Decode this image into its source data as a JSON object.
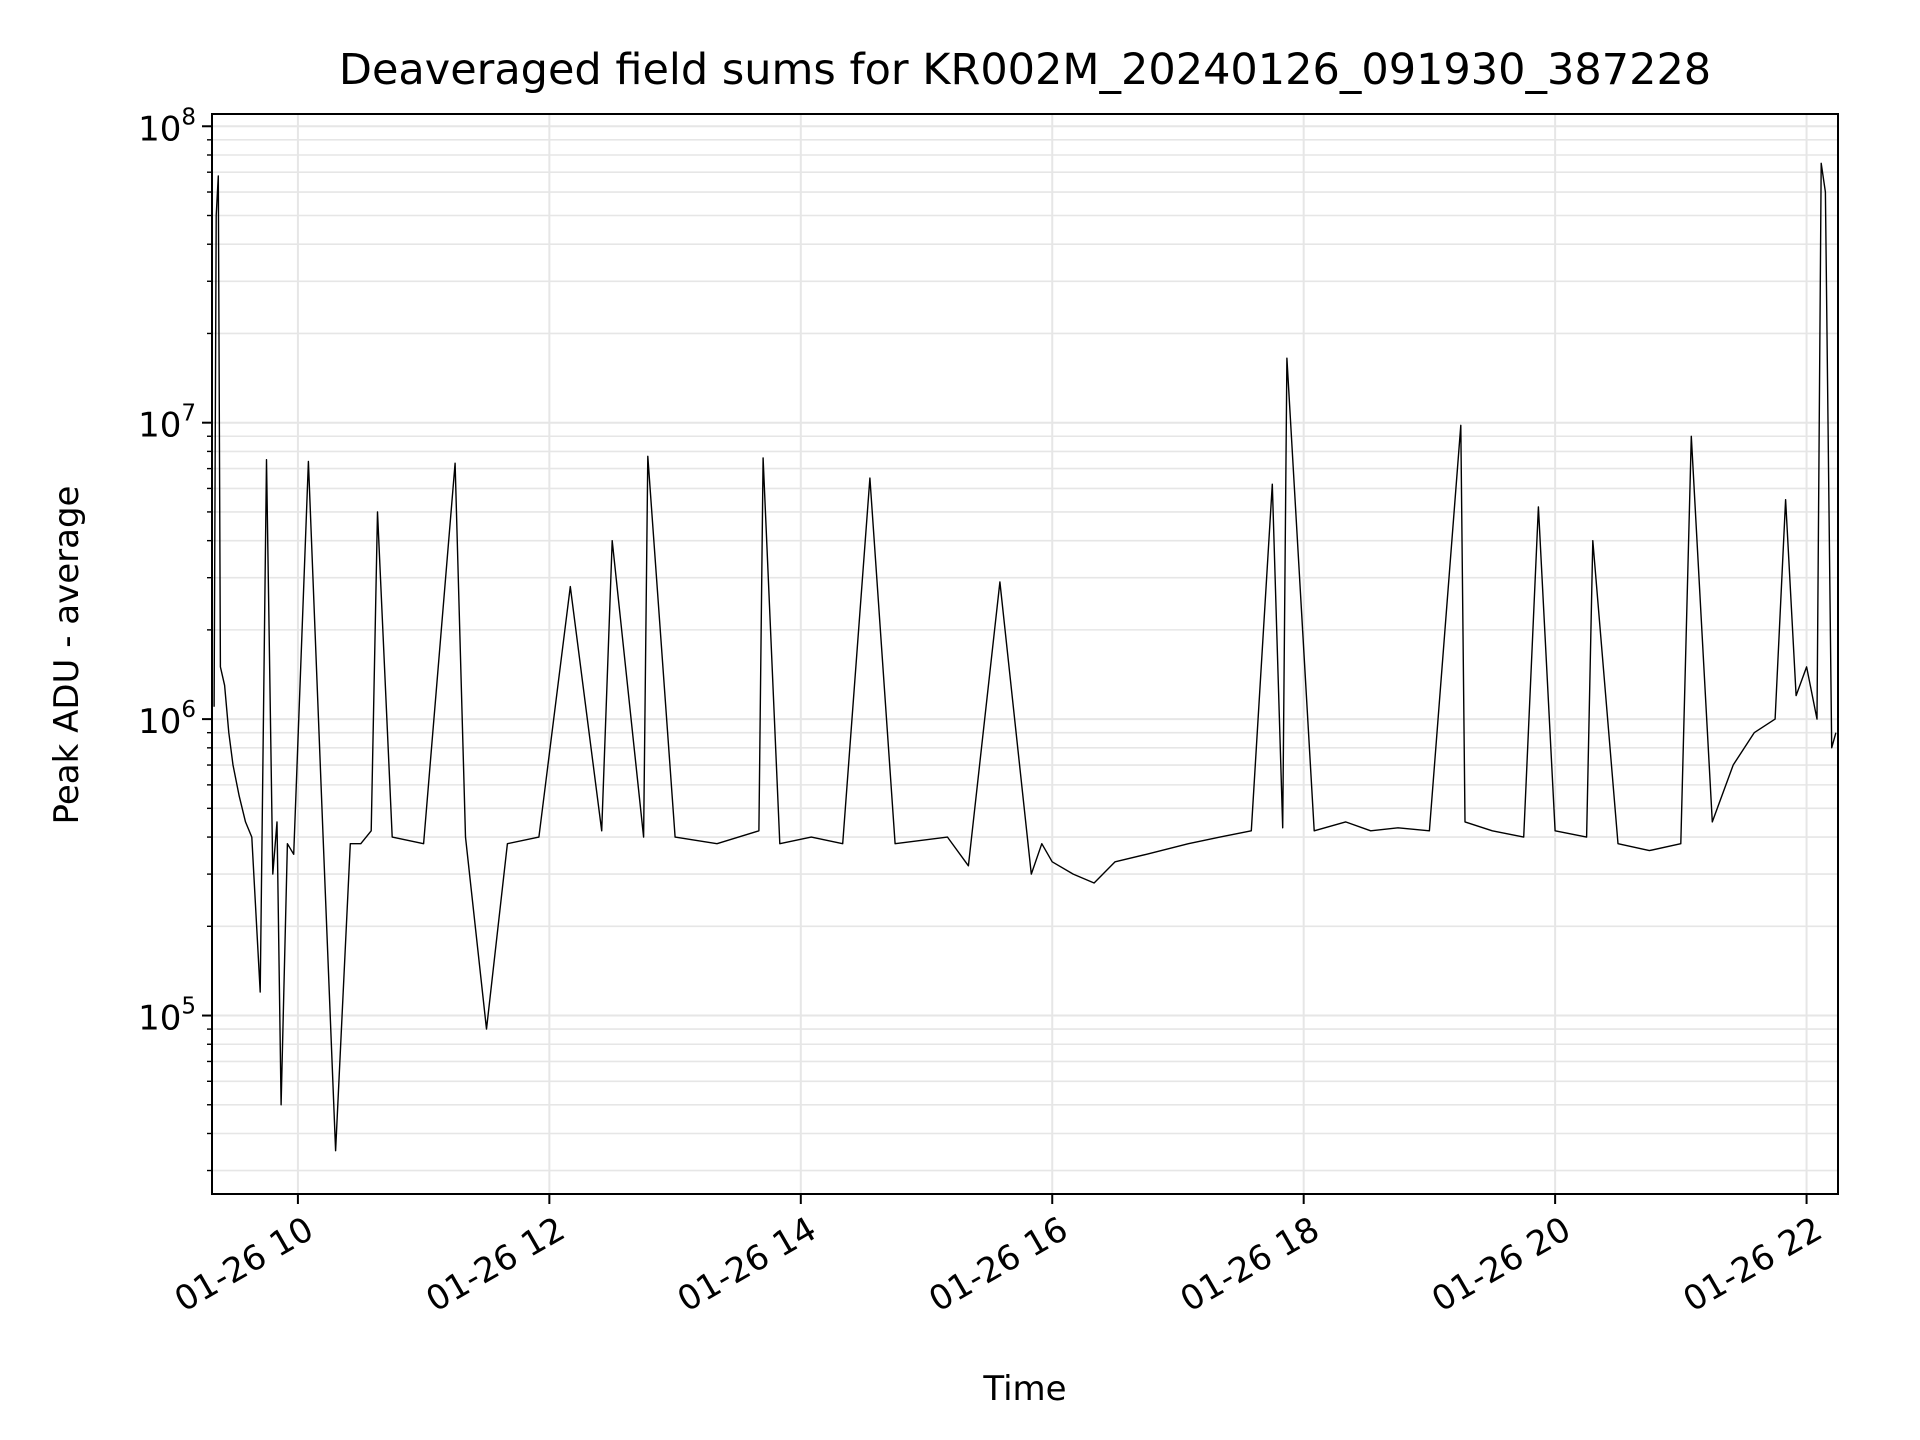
{
  "chart_data": {
    "type": "line",
    "title": "Deaveraged field sums for KR002M_20240126_091930_387228",
    "xlabel": "Time",
    "ylabel": "Peak ADU - average",
    "y_scale": "log",
    "ylim": [
      25000,
      110000000
    ],
    "xlim": [
      "2024-01-26 09:19",
      "2024-01-26 22:15"
    ],
    "grid": true,
    "x_ticks": [
      {
        "value": "2024-01-26 10:00",
        "label": "01-26 10"
      },
      {
        "value": "2024-01-26 12:00",
        "label": "01-26 12"
      },
      {
        "value": "2024-01-26 14:00",
        "label": "01-26 14"
      },
      {
        "value": "2024-01-26 16:00",
        "label": "01-26 16"
      },
      {
        "value": "2024-01-26 18:00",
        "label": "01-26 18"
      },
      {
        "value": "2024-01-26 20:00",
        "label": "01-26 20"
      },
      {
        "value": "2024-01-26 22:00",
        "label": "01-26 22"
      }
    ],
    "y_ticks": [
      {
        "value": 100000,
        "base": "10",
        "exp": "5"
      },
      {
        "value": 1000000,
        "base": "10",
        "exp": "6"
      },
      {
        "value": 10000000,
        "base": "10",
        "exp": "7"
      },
      {
        "value": 100000000,
        "base": "10",
        "exp": "8"
      }
    ],
    "line_color": "#000000",
    "grid_color": "#e6e6e6",
    "series": [
      {
        "x": [
          "2024-01-26 09:20",
          "2024-01-26 09:21",
          "2024-01-26 09:22",
          "2024-01-26 09:23",
          "2024-01-26 09:25",
          "2024-01-26 09:27",
          "2024-01-26 09:29",
          "2024-01-26 09:32",
          "2024-01-26 09:35",
          "2024-01-26 09:38",
          "2024-01-26 09:42",
          "2024-01-26 09:45",
          "2024-01-26 09:48",
          "2024-01-26 09:50",
          "2024-01-26 09:52",
          "2024-01-26 09:55",
          "2024-01-26 09:58",
          "2024-01-26 10:05",
          "2024-01-26 10:12",
          "2024-01-26 10:18",
          "2024-01-26 10:25",
          "2024-01-26 10:30",
          "2024-01-26 10:35",
          "2024-01-26 10:38",
          "2024-01-26 10:45",
          "2024-01-26 11:00",
          "2024-01-26 11:15",
          "2024-01-26 11:20",
          "2024-01-26 11:30",
          "2024-01-26 11:40",
          "2024-01-26 11:55",
          "2024-01-26 12:10",
          "2024-01-26 12:25",
          "2024-01-26 12:30",
          "2024-01-26 12:45",
          "2024-01-26 12:47",
          "2024-01-26 13:00",
          "2024-01-26 13:20",
          "2024-01-26 13:40",
          "2024-01-26 13:42",
          "2024-01-26 13:50",
          "2024-01-26 14:05",
          "2024-01-26 14:20",
          "2024-01-26 14:33",
          "2024-01-26 14:45",
          "2024-01-26 15:10",
          "2024-01-26 15:20",
          "2024-01-26 15:35",
          "2024-01-26 15:50",
          "2024-01-26 15:55",
          "2024-01-26 16:00",
          "2024-01-26 16:10",
          "2024-01-26 16:20",
          "2024-01-26 16:30",
          "2024-01-26 16:45",
          "2024-01-26 17:05",
          "2024-01-26 17:20",
          "2024-01-26 17:35",
          "2024-01-26 17:45",
          "2024-01-26 17:50",
          "2024-01-26 17:52",
          "2024-01-26 18:05",
          "2024-01-26 18:20",
          "2024-01-26 18:32",
          "2024-01-26 18:45",
          "2024-01-26 19:00",
          "2024-01-26 19:15",
          "2024-01-26 19:17",
          "2024-01-26 19:30",
          "2024-01-26 19:45",
          "2024-01-26 19:52",
          "2024-01-26 20:00",
          "2024-01-26 20:15",
          "2024-01-26 20:18",
          "2024-01-26 20:30",
          "2024-01-26 20:45",
          "2024-01-26 21:00",
          "2024-01-26 21:05",
          "2024-01-26 21:15",
          "2024-01-26 21:25",
          "2024-01-26 21:35",
          "2024-01-26 21:45",
          "2024-01-26 21:50",
          "2024-01-26 21:55",
          "2024-01-26 22:00",
          "2024-01-26 22:05",
          "2024-01-26 22:07",
          "2024-01-26 22:09",
          "2024-01-26 22:12",
          "2024-01-26 22:14"
        ],
        "y": [
          1100000,
          50000000,
          68000000,
          1500000,
          1300000,
          900000,
          700000,
          550000,
          450000,
          400000,
          120000,
          7500000,
          300000,
          450000,
          50000,
          380000,
          350000,
          7400000,
          400000,
          35000,
          380000,
          380000,
          420000,
          5000000,
          400000,
          380000,
          7300000,
          400000,
          90000,
          380000,
          400000,
          2800000,
          420000,
          4000000,
          400000,
          7700000,
          400000,
          380000,
          420000,
          7600000,
          380000,
          400000,
          380000,
          6500000,
          380000,
          400000,
          320000,
          2900000,
          300000,
          380000,
          330000,
          300000,
          280000,
          330000,
          350000,
          380000,
          400000,
          420000,
          6200000,
          430000,
          16500000,
          420000,
          450000,
          420000,
          430000,
          420000,
          9800000,
          450000,
          420000,
          400000,
          5200000,
          420000,
          400000,
          4000000,
          380000,
          360000,
          380000,
          9000000,
          450000,
          700000,
          900000,
          1000000,
          5500000,
          1200000,
          1500000,
          1000000,
          75000000,
          60000000,
          800000,
          900000
        ]
      }
    ]
  }
}
